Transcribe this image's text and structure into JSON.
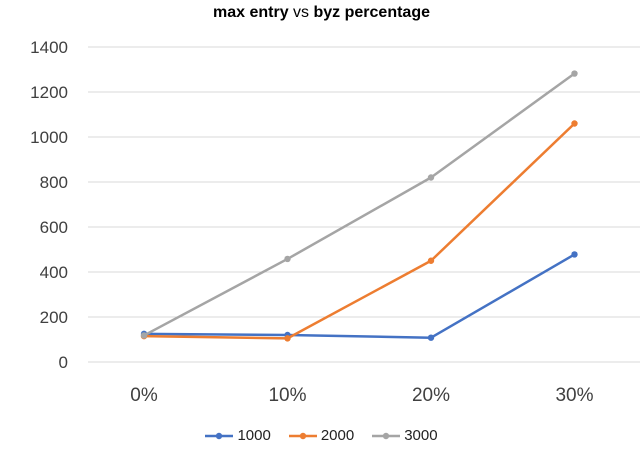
{
  "chart_data": {
    "type": "line",
    "title_parts": [
      {
        "text": "max entry",
        "bold": true
      },
      {
        "text": " vs ",
        "bold": false
      },
      {
        "text": "byz percentage",
        "bold": true
      }
    ],
    "xlabel": "",
    "ylabel": "",
    "categories": [
      "0%",
      "10%",
      "20%",
      "30%"
    ],
    "ylim": [
      0,
      1400
    ],
    "yticks": [
      "0",
      "200",
      "400",
      "600",
      "800",
      "1000",
      "1200",
      "1400"
    ],
    "grid": true,
    "legend_position": "bottom",
    "series": [
      {
        "name": "1000",
        "color": "#4472C4",
        "values": [
          125,
          120,
          108,
          478
        ]
      },
      {
        "name": "2000",
        "color": "#ED7D31",
        "values": [
          115,
          105,
          450,
          1060
        ]
      },
      {
        "name": "3000",
        "color": "#A5A5A5",
        "values": [
          118,
          458,
          820,
          1282
        ]
      }
    ]
  }
}
